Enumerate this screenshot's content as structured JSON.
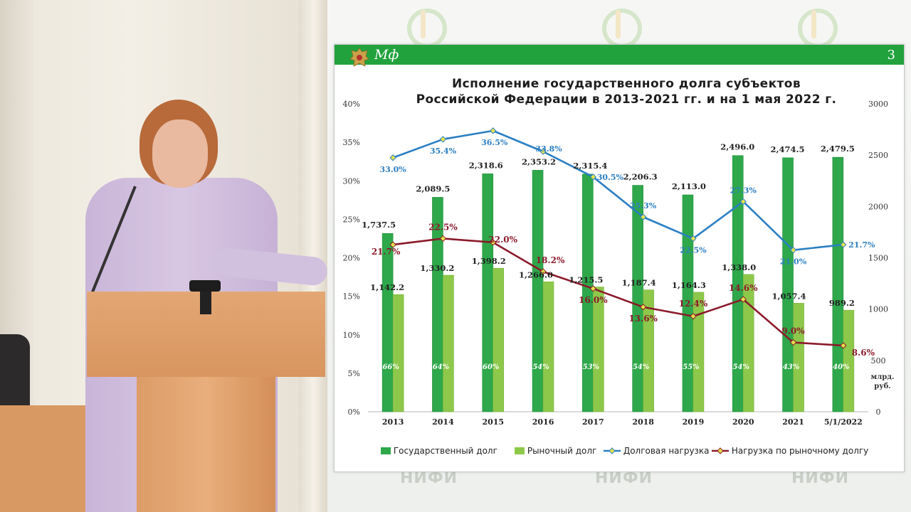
{
  "slide": {
    "header_text": "Мф",
    "page_number": "3",
    "colors": {
      "header": "#22a23d",
      "gov_debt": "#2ea84a",
      "market_debt": "#8dc84b",
      "debt_load": "#2b7fc3",
      "market_load": "#8b1a2b"
    }
  },
  "background": {
    "watermark": "НИФИ"
  },
  "chart_data": {
    "type": "bar",
    "title": "Исполнение государственного долга субъектов Российской Федерации в 2013-2021 гг. и на 1 мая 2022 г.",
    "title_lines": [
      "Исполнение государственного долга субъектов",
      "Российской Федерации в 2013-2021 гг. и на 1 мая 2022 г."
    ],
    "categories": [
      "2013",
      "2014",
      "2015",
      "2016",
      "2017",
      "2018",
      "2019",
      "2020",
      "2021",
      "5/1/2022"
    ],
    "y_left": {
      "ticks": [
        "0%",
        "5%",
        "10%",
        "15%",
        "20%",
        "25%",
        "30%",
        "35%",
        "40%"
      ],
      "ylim": [
        0,
        40
      ]
    },
    "y_right": {
      "ticks": [
        "0",
        "500",
        "1000",
        "1500",
        "2000",
        "2500",
        "3000"
      ],
      "ylim": [
        0,
        3000
      ],
      "unit_label": [
        "млрд.",
        "руб."
      ]
    },
    "series": [
      {
        "name": "Государственный долг",
        "kind": "bar",
        "axis": "right",
        "values": [
          1737.5,
          2089.5,
          2318.6,
          2353.2,
          2315.4,
          2206.3,
          2113.0,
          2496.0,
          2474.5,
          2479.5
        ],
        "labels": [
          "1,737.5",
          "2,089.5",
          "2,318.6",
          "2,353.2",
          "2,315.4",
          "2,206.3",
          "2,113.0",
          "2,496.0",
          "2,474.5",
          "2,479.5"
        ]
      },
      {
        "name": "Рыночный долг",
        "kind": "bar",
        "axis": "right",
        "values": [
          1142.2,
          1330.2,
          1398.2,
          1266.0,
          1215.5,
          1187.4,
          1164.3,
          1338.0,
          1057.4,
          989.2
        ],
        "labels": [
          "1,142.2",
          "1,330.2",
          "1,398.2",
          "1,266.0",
          "1,215.5",
          "1,187.4",
          "1,164.3",
          "1,338.0",
          "1,057.4",
          "989.2"
        ],
        "share_labels": [
          "66%",
          "64%",
          "60%",
          "54%",
          "53%",
          "54%",
          "55%",
          "54%",
          "43%",
          "40%"
        ]
      },
      {
        "name": "Долговая нагрузка",
        "kind": "line",
        "axis": "left",
        "values": [
          33.0,
          35.4,
          36.5,
          33.8,
          30.5,
          25.3,
          22.5,
          27.3,
          21.0,
          21.7
        ],
        "labels": [
          "33.0%",
          "35.4%",
          "36.5%",
          "33.8%",
          "30.5%",
          "25.3%",
          "22.5%",
          "27.3%",
          "21.0%",
          "21.7%"
        ]
      },
      {
        "name": "Нагрузка по рыночному долгу",
        "kind": "line",
        "axis": "left",
        "values": [
          21.7,
          22.5,
          22.0,
          18.2,
          16.0,
          13.6,
          12.4,
          14.6,
          9.0,
          8.6
        ],
        "labels": [
          "21.7%",
          "22.5%",
          "22.0%",
          "18.2%",
          "16.0%",
          "13.6%",
          "12.4%",
          "14.6%",
          "9.0%",
          "8.6%"
        ]
      }
    ],
    "grid": false,
    "legend_position": "bottom"
  }
}
